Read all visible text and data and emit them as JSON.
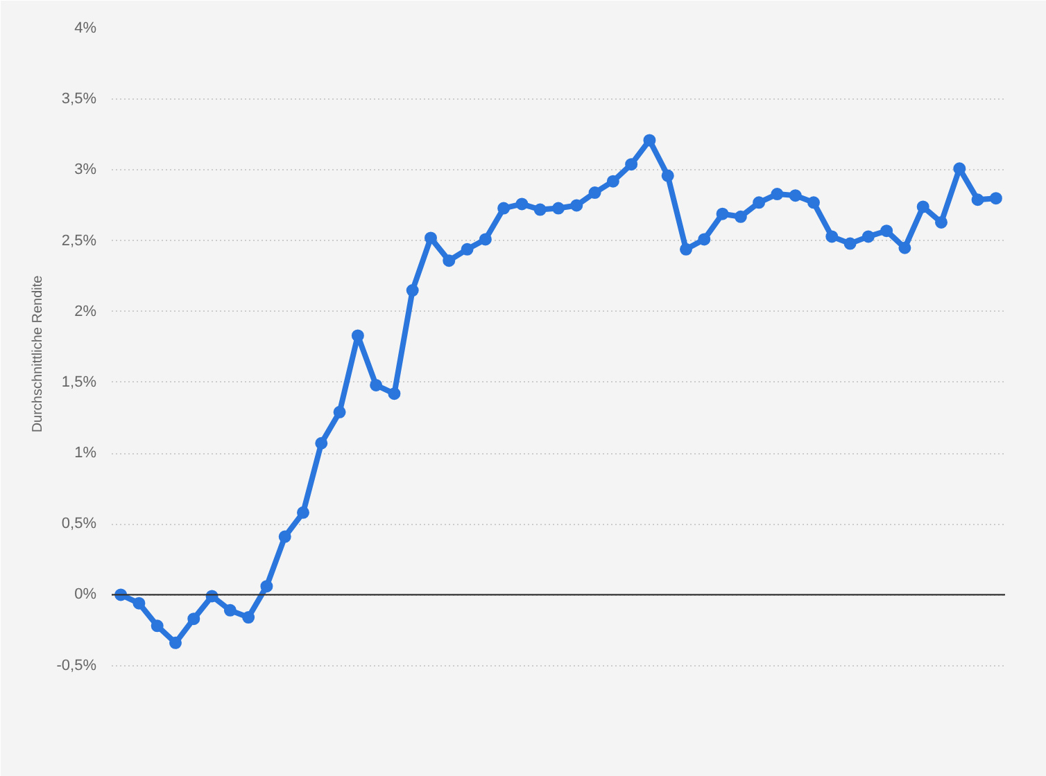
{
  "chart_data": {
    "type": "line",
    "ylabel": "Durchschnittliche Rendite",
    "categories": [
      null,
      null,
      null,
      null,
      null,
      null,
      null,
      null,
      null,
      null,
      null,
      null,
      null,
      null,
      null,
      null,
      null,
      null,
      null,
      null,
      null,
      null,
      null,
      null,
      null,
      null,
      null,
      null,
      null,
      null,
      null,
      null,
      null,
      null,
      null,
      null,
      null,
      null,
      null,
      null,
      null,
      null,
      null,
      null,
      null,
      null,
      null,
      null,
      null
    ],
    "series": [
      {
        "color": "#2a76dd",
        "values": [
          0.0,
          -0.06,
          -0.22,
          -0.34,
          -0.17,
          -0.01,
          -0.11,
          -0.16,
          0.06,
          0.41,
          0.58,
          1.07,
          1.29,
          1.83,
          1.48,
          1.42,
          2.15,
          2.52,
          2.36,
          2.44,
          2.51,
          2.73,
          2.76,
          2.72,
          2.73,
          2.75,
          2.84,
          2.92,
          3.04,
          3.21,
          2.96,
          2.44,
          2.51,
          2.69,
          2.67,
          2.77,
          2.83,
          2.82,
          2.77,
          2.53,
          2.48,
          2.53,
          2.57,
          2.45,
          2.74,
          2.63,
          3.01,
          2.79,
          2.8
        ]
      }
    ],
    "ylim": [
      -0.6,
      4
    ],
    "yticks": [
      {
        "value": -0.5,
        "label": "-0,5%"
      },
      {
        "value": 0,
        "label": "0%"
      },
      {
        "value": 0.5,
        "label": "0,5%"
      },
      {
        "value": 1,
        "label": "1%"
      },
      {
        "value": 1.5,
        "label": "1,5%"
      },
      {
        "value": 2,
        "label": "2%"
      },
      {
        "value": 2.5,
        "label": "2,5%"
      },
      {
        "value": 3,
        "label": "3%"
      },
      {
        "value": 3.5,
        "label": "3,5%"
      },
      {
        "value": 4,
        "label": "4%"
      }
    ],
    "ref_lines": [
      {
        "axis": "y",
        "value": 0,
        "color": "#333333"
      }
    ],
    "grid": "y",
    "marker": "circle",
    "line_style": "solid",
    "tick_labels": "y"
  }
}
